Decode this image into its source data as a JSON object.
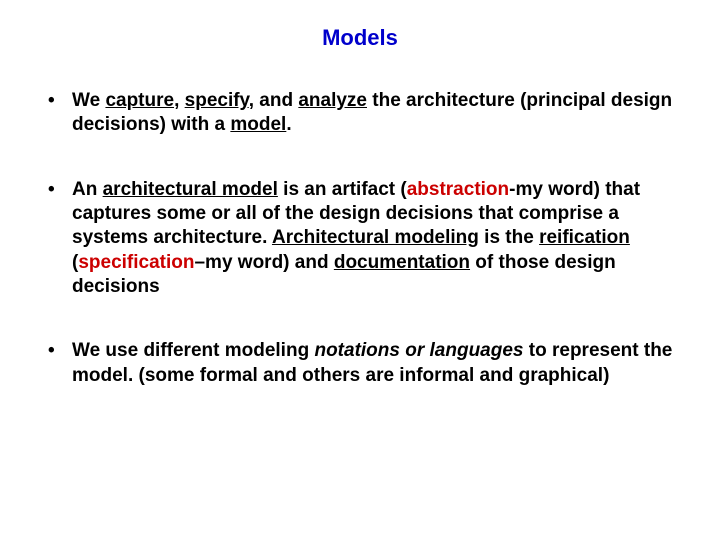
{
  "title": {
    "text": "Models",
    "color": "#0000cc",
    "fontsize": 22
  },
  "bullets": [
    {
      "segments": [
        {
          "t": "We ",
          "style": ""
        },
        {
          "t": "capture,",
          "style": "u"
        },
        {
          "t": " ",
          "style": ""
        },
        {
          "t": "specify",
          "style": "u"
        },
        {
          "t": ", and ",
          "style": ""
        },
        {
          "t": "analyze",
          "style": "u"
        },
        {
          "t": " the architecture (principal design decisions) with a ",
          "style": ""
        },
        {
          "t": "model",
          "style": "u"
        },
        {
          "t": ".",
          "style": ""
        }
      ]
    },
    {
      "segments": [
        {
          "t": "An ",
          "style": ""
        },
        {
          "t": "architectural model",
          "style": "u"
        },
        {
          "t": " is an artifact (",
          "style": ""
        },
        {
          "t": "abstraction",
          "style": "red"
        },
        {
          "t": "-my word) that captures some or all of the design decisions that comprise a systems architecture. ",
          "style": ""
        },
        {
          "t": "Architectural modeling",
          "style": "u"
        },
        {
          "t": " is the ",
          "style": ""
        },
        {
          "t": "reification",
          "style": "u"
        },
        {
          "t": " (",
          "style": ""
        },
        {
          "t": "specification",
          "style": "red"
        },
        {
          "t": "–my word) and ",
          "style": ""
        },
        {
          "t": "documentation",
          "style": "u"
        },
        {
          "t": " of those design decisions",
          "style": ""
        }
      ]
    },
    {
      "segments": [
        {
          "t": "We use different modeling ",
          "style": ""
        },
        {
          "t": "notations or languages",
          "style": "ital"
        },
        {
          "t": " to represent the model. (some formal and others are informal and graphical)",
          "style": ""
        }
      ]
    }
  ],
  "style": {
    "background": "#ffffff",
    "text_color": "#000000",
    "accent_red": "#cc0000",
    "bullet_fontsize": 19,
    "line_height": 1.28
  }
}
